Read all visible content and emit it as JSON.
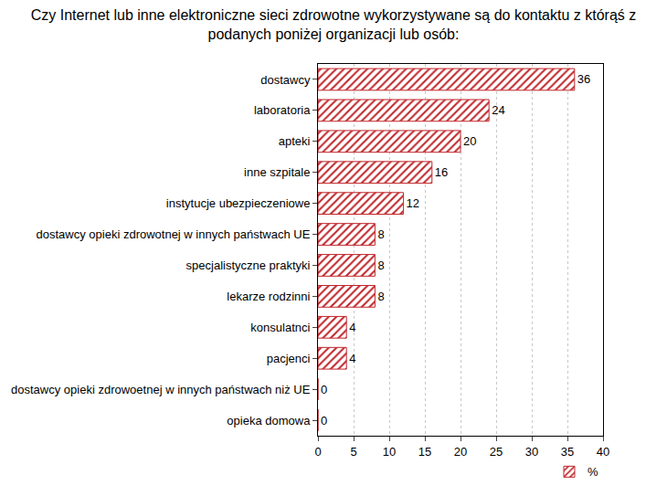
{
  "chart_data": {
    "type": "bar",
    "orientation": "horizontal",
    "title": "Czy Internet lub inne elektroniczne sieci zdrowotne wykorzystywane są do kontaktu z którąś z\npodanych poniżej organizacji lub osób:",
    "categories": [
      "dostawcy",
      "laboratoria",
      "apteki",
      "inne szpitale",
      "instytucje ubezpieczeniowe",
      "dostawcy opieki zdrowotnej w innych państwach UE",
      "specjalistyczne praktyki",
      "lekarze rodzinni",
      "konsulatnci",
      "pacjenci",
      "dostawcy opieki zdrowoetnej w innych państwach niż UE",
      "opieka domowa"
    ],
    "series": [
      {
        "name": "%",
        "color": "#c0282d",
        "values": [
          36,
          24,
          20,
          16,
          12,
          8,
          8,
          8,
          4,
          4,
          0,
          0
        ]
      }
    ],
    "xlim": [
      0,
      40
    ],
    "xticks": [
      0,
      5,
      10,
      15,
      20,
      25,
      30,
      35,
      40
    ],
    "grid": true,
    "data_labels": true,
    "legend": "bottom-right"
  }
}
